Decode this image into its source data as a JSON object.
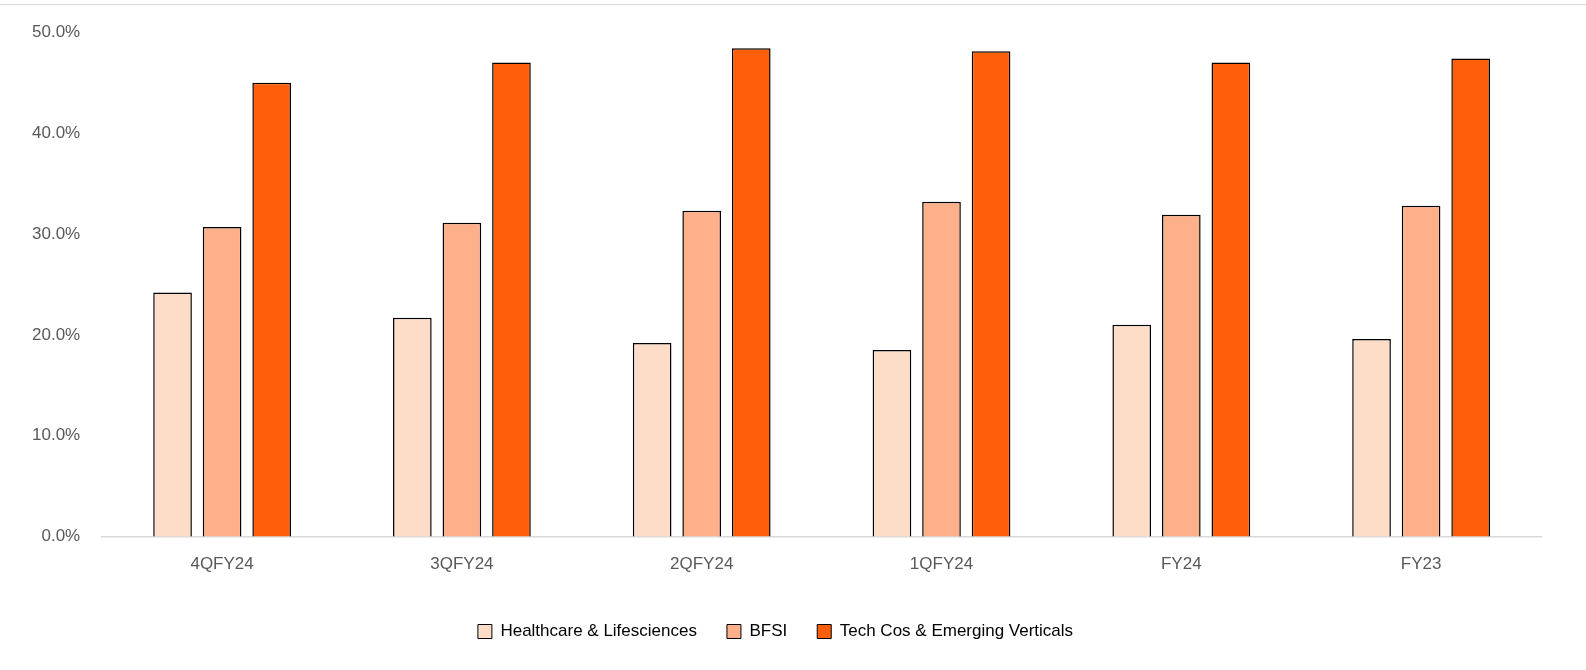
{
  "chart_data": {
    "type": "bar",
    "categories": [
      "4QFY24",
      "3QFY24",
      "2QFY24",
      "1QFY24",
      "FY24",
      "FY23"
    ],
    "series": [
      {
        "name": "Healthcare & Lifesciences",
        "color": "#fddcc8",
        "values": [
          24.2,
          21.7,
          19.2,
          18.5,
          21.0,
          19.6
        ]
      },
      {
        "name": "BFSI",
        "color": "#fdb08a",
        "values": [
          30.7,
          31.1,
          32.3,
          33.2,
          31.9,
          32.8
        ]
      },
      {
        "name": "Tech Cos & Emerging Verticals",
        "color": "#ff5f0a",
        "values": [
          45.0,
          47.0,
          48.4,
          48.1,
          47.0,
          47.4
        ]
      }
    ],
    "ylim": [
      0,
      50
    ],
    "yticks": [
      {
        "value": 0,
        "label": "0.0%"
      },
      {
        "value": 10,
        "label": "10.0%"
      },
      {
        "value": 20,
        "label": "20.0%"
      },
      {
        "value": 30,
        "label": "30.0%"
      },
      {
        "value": 40,
        "label": "40.0%"
      },
      {
        "value": 50,
        "label": "50.0%"
      }
    ],
    "grid": false,
    "legend": "bottom"
  }
}
